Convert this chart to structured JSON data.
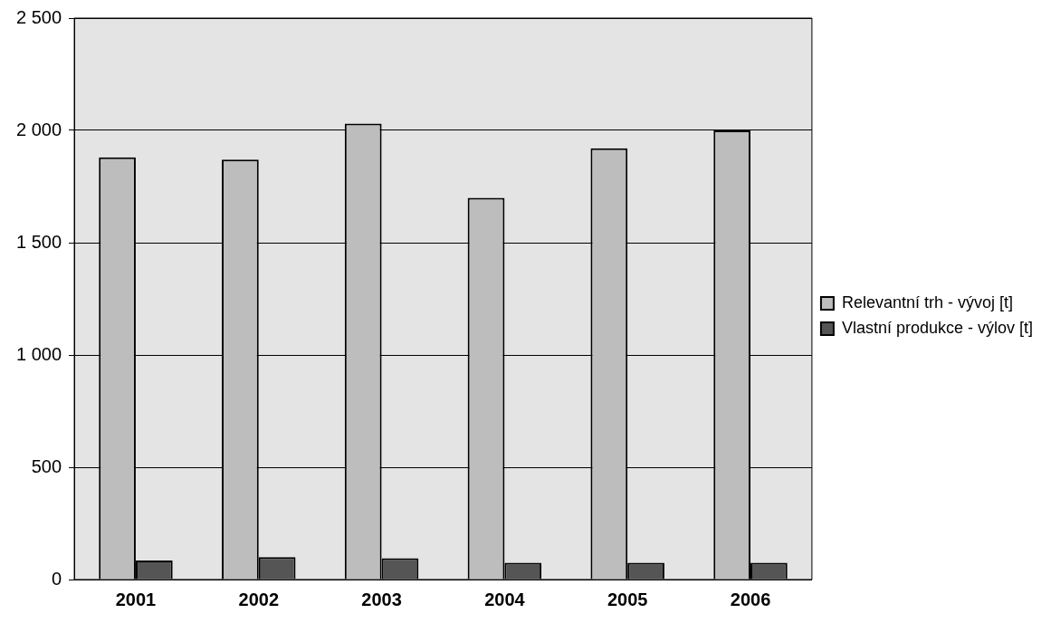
{
  "chart_data": {
    "type": "bar",
    "categories": [
      "2001",
      "2002",
      "2003",
      "2004",
      "2005",
      "2006"
    ],
    "series": [
      {
        "name": "Relevantní trh - vývoj [t]",
        "color": "#bdbdbd",
        "values": [
          1880,
          1870,
          2030,
          1700,
          1920,
          2000
        ]
      },
      {
        "name": "Vlastní produkce - výlov [t]",
        "color": "#555555",
        "values": [
          85,
          100,
          95,
          75,
          75,
          75
        ]
      }
    ],
    "ylim": [
      0,
      2500
    ],
    "yticks": [
      0,
      500,
      {
        "value": 1000,
        "label": "1 000"
      },
      {
        "value": 1500,
        "label": "1 500"
      },
      {
        "value": 2000,
        "label": "2 000"
      },
      {
        "value": 2500,
        "label": "2 500"
      }
    ],
    "grid": "y",
    "legend": "right"
  }
}
